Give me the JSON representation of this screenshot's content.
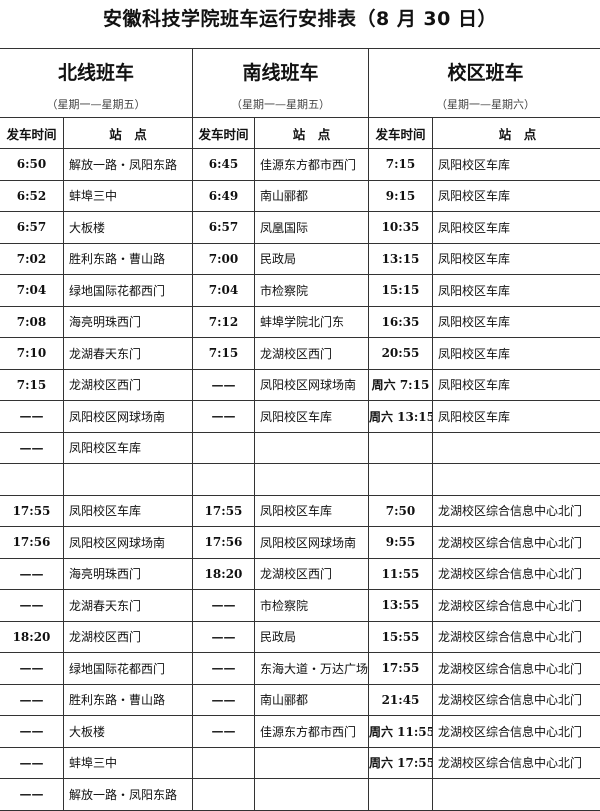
{
  "title": "安徽科技学院班车运行安排表（8 月 30 日）",
  "groups": [
    {
      "name": "北线班车",
      "days": "（星期一—星期五）"
    },
    {
      "name": "南线班车",
      "days": "（星期一—星期五）"
    },
    {
      "name": "校区班车",
      "days": "（星期一—星期六）"
    }
  ],
  "col_headers": {
    "time": "发车时间",
    "stop": "站　点"
  },
  "rows": [
    [
      [
        "6:50",
        "解放一路・凤阳东路"
      ],
      [
        "6:45",
        "佳源东方都市西门"
      ],
      [
        "7:15",
        "凤阳校区车库"
      ]
    ],
    [
      [
        "6:52",
        "蚌埠三中"
      ],
      [
        "6:49",
        "南山郦都"
      ],
      [
        "9:15",
        "凤阳校区车库"
      ]
    ],
    [
      [
        "6:57",
        "大板楼"
      ],
      [
        "6:57",
        "凤凰国际"
      ],
      [
        "10:35",
        "凤阳校区车库"
      ]
    ],
    [
      [
        "7:02",
        "胜利东路・曹山路"
      ],
      [
        "7:00",
        "民政局"
      ],
      [
        "13:15",
        "凤阳校区车库"
      ]
    ],
    [
      [
        "7:04",
        "绿地国际花都西门"
      ],
      [
        "7:04",
        "市检察院"
      ],
      [
        "15:15",
        "凤阳校区车库"
      ]
    ],
    [
      [
        "7:08",
        "海亮明珠西门"
      ],
      [
        "7:12",
        "蚌埠学院北门东"
      ],
      [
        "16:35",
        "凤阳校区车库"
      ]
    ],
    [
      [
        "7:10",
        "龙湖春天东门"
      ],
      [
        "7:15",
        "龙湖校区西门"
      ],
      [
        "20:55",
        "凤阳校区车库"
      ]
    ],
    [
      [
        "7:15",
        "龙湖校区西门"
      ],
      [
        "——",
        "凤阳校区网球场南"
      ],
      [
        "周六 7:15",
        "凤阳校区车库"
      ]
    ],
    [
      [
        "——",
        "凤阳校区网球场南"
      ],
      [
        "——",
        "凤阳校区车库"
      ],
      [
        "周六 13:15",
        "凤阳校区车库"
      ]
    ],
    [
      [
        "——",
        "凤阳校区车库"
      ],
      [
        "",
        ""
      ],
      [
        "",
        ""
      ]
    ],
    [
      [
        "",
        ""
      ],
      [
        "",
        ""
      ],
      [
        "",
        ""
      ]
    ],
    [
      [
        "17:55",
        "凤阳校区车库"
      ],
      [
        "17:55",
        "凤阳校区车库"
      ],
      [
        "7:50",
        "龙湖校区综合信息中心北门"
      ]
    ],
    [
      [
        "17:56",
        "凤阳校区网球场南"
      ],
      [
        "17:56",
        "凤阳校区网球场南"
      ],
      [
        "9:55",
        "龙湖校区综合信息中心北门"
      ]
    ],
    [
      [
        "——",
        "海亮明珠西门"
      ],
      [
        "18:20",
        "龙湖校区西门"
      ],
      [
        "11:55",
        "龙湖校区综合信息中心北门"
      ]
    ],
    [
      [
        "——",
        "龙湖春天东门"
      ],
      [
        "——",
        "市检察院"
      ],
      [
        "13:55",
        "龙湖校区综合信息中心北门"
      ]
    ],
    [
      [
        "18:20",
        "龙湖校区西门"
      ],
      [
        "——",
        "民政局"
      ],
      [
        "15:55",
        "龙湖校区综合信息中心北门"
      ]
    ],
    [
      [
        "——",
        "绿地国际花都西门"
      ],
      [
        "——",
        "东海大道・万达广场"
      ],
      [
        "17:55",
        "龙湖校区综合信息中心北门"
      ]
    ],
    [
      [
        "——",
        "胜利东路・曹山路"
      ],
      [
        "——",
        "南山郦都"
      ],
      [
        "21:45",
        "龙湖校区综合信息中心北门"
      ]
    ],
    [
      [
        "——",
        "大板楼"
      ],
      [
        "——",
        "佳源东方都市西门"
      ],
      [
        "周六 11:55",
        "龙湖校区综合信息中心北门"
      ]
    ],
    [
      [
        "——",
        "蚌埠三中"
      ],
      [
        "",
        ""
      ],
      [
        "周六 17:55",
        "龙湖校区综合信息中心北门"
      ]
    ],
    [
      [
        "——",
        "解放一路・凤阳东路"
      ],
      [
        "",
        ""
      ],
      [
        "",
        ""
      ]
    ]
  ]
}
